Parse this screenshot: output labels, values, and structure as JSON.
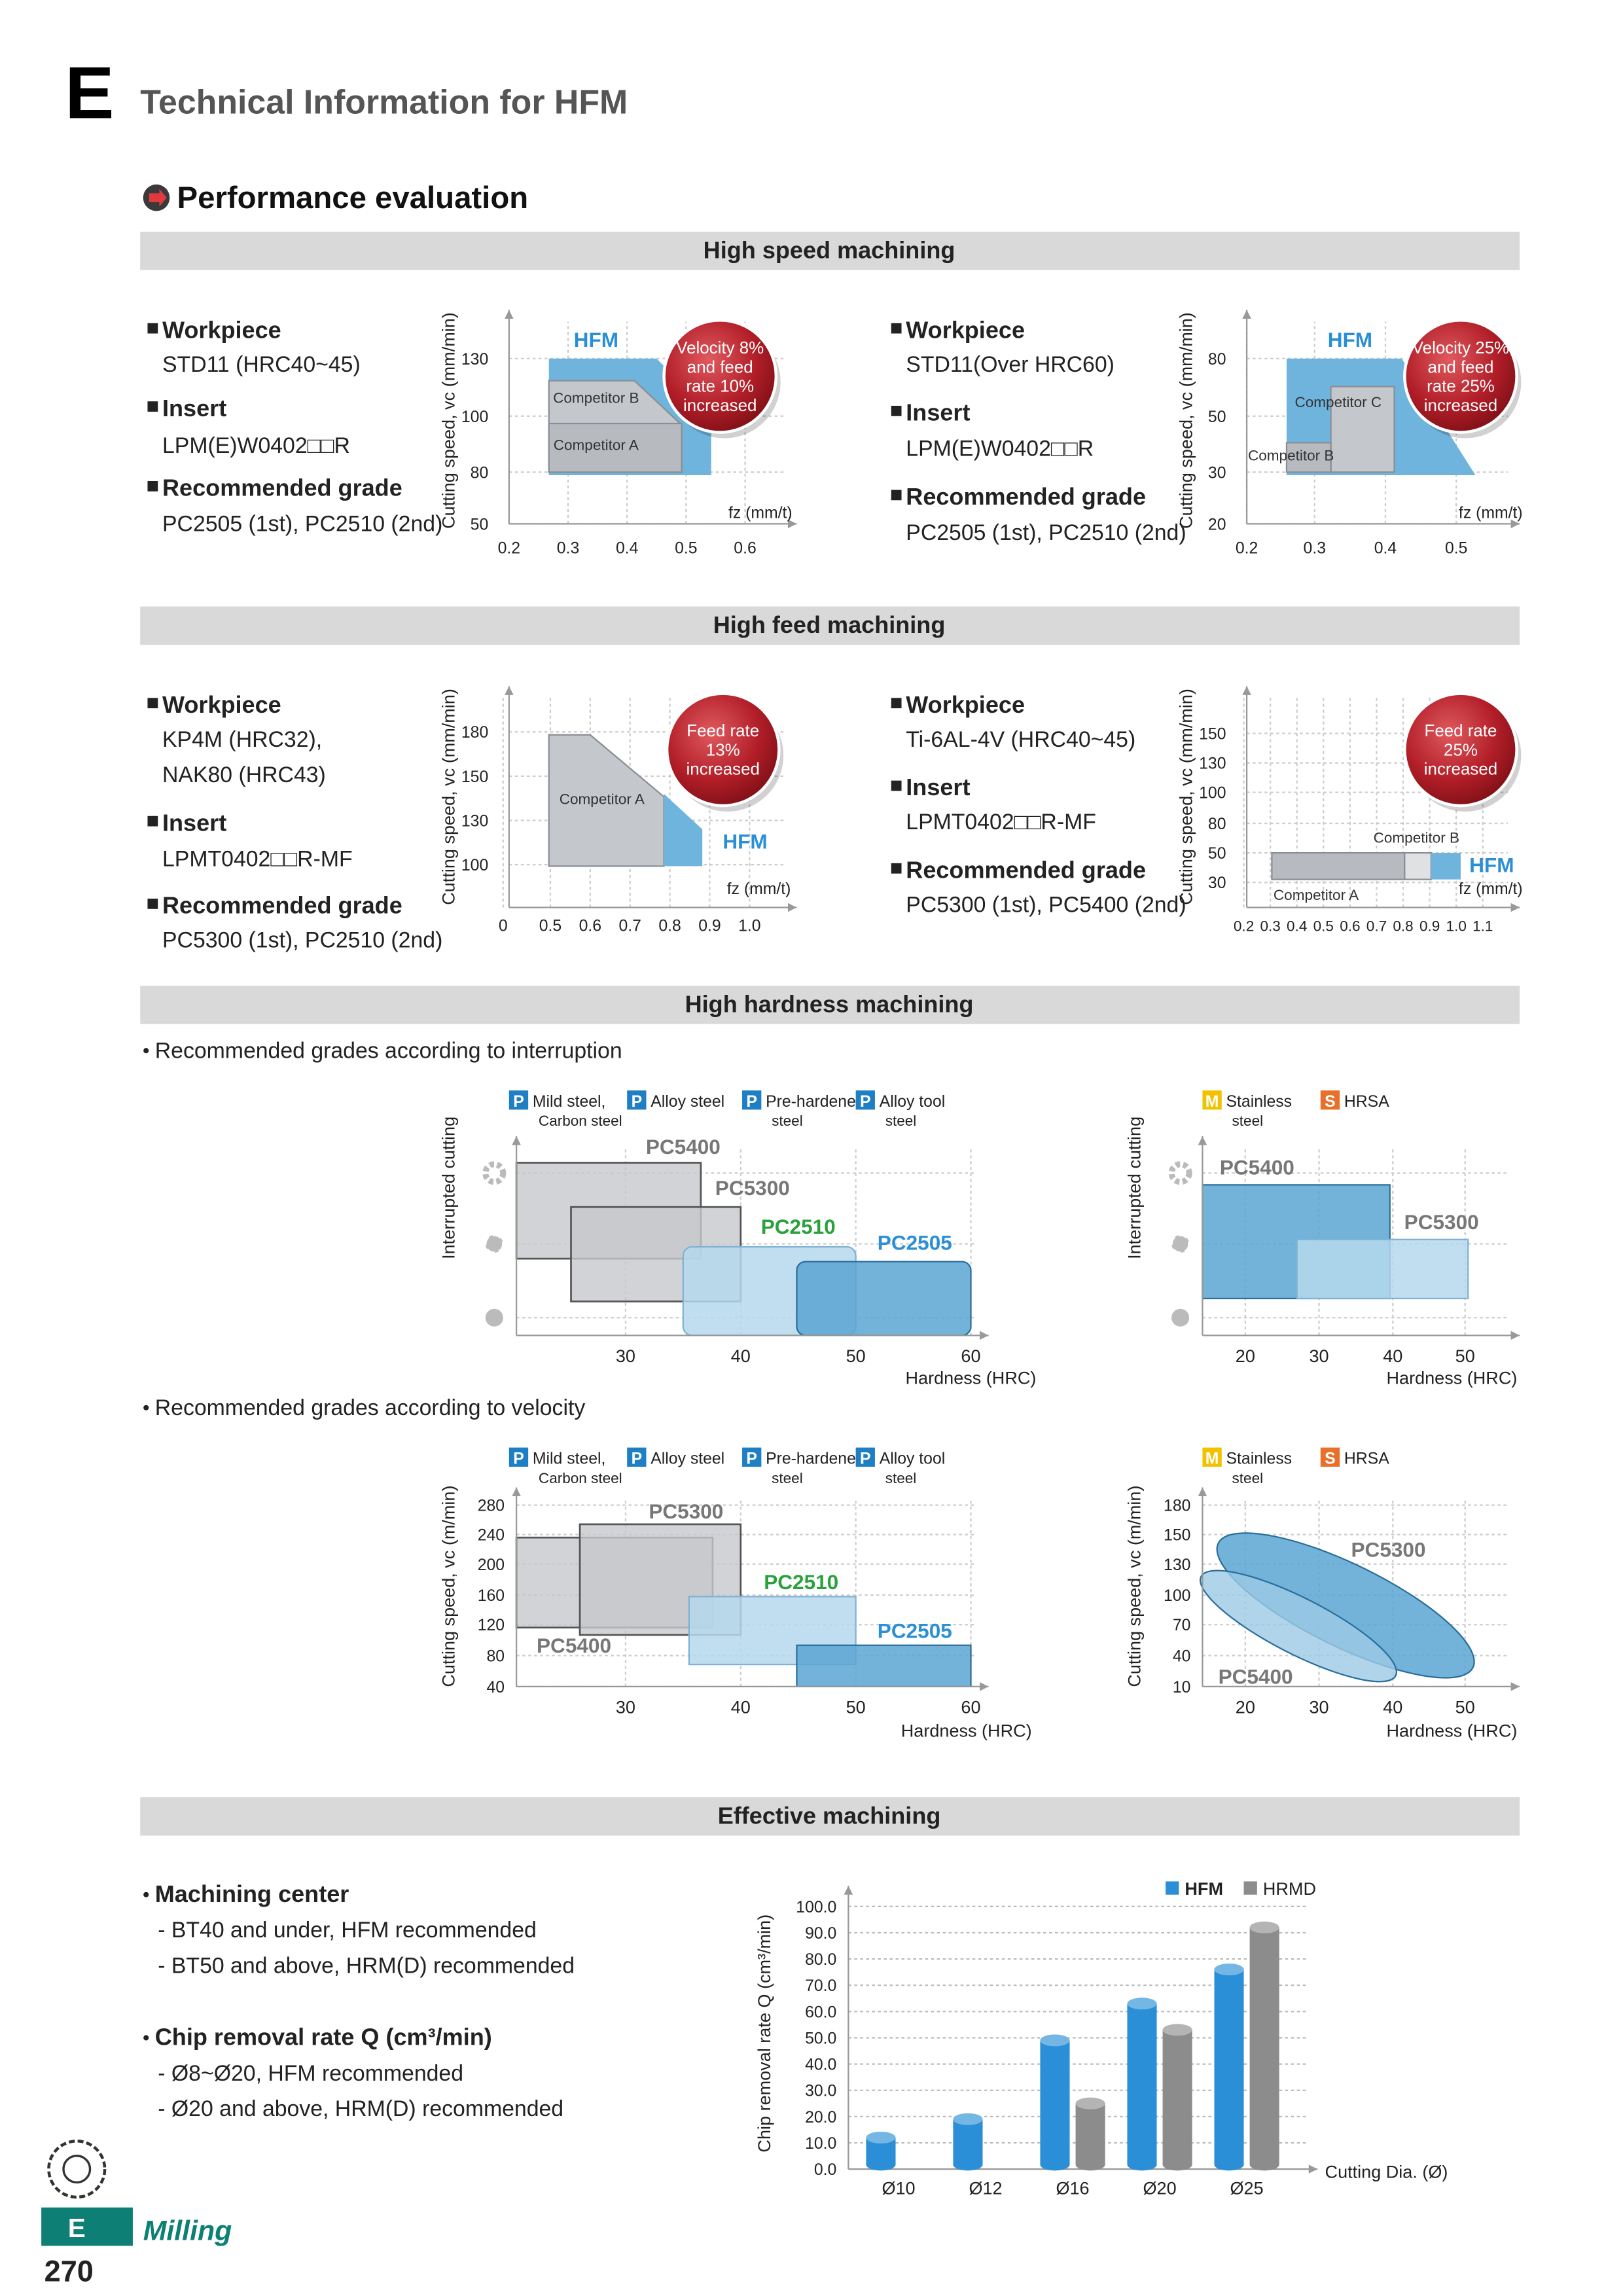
{
  "header": {
    "letter": "E",
    "title": "Technical Information for HFM"
  },
  "section": {
    "title": "Performance evaluation"
  },
  "high_speed": {
    "heading": "High speed machining",
    "left": {
      "specs": [
        {
          "label": "Workpiece",
          "lines": [
            "STD11 (HRC40~45)"
          ]
        },
        {
          "label": "Insert",
          "lines": [
            "LPM(E)W0402□□R"
          ]
        },
        {
          "label": "Recommended grade",
          "lines": [
            "PC2505 (1st), PC2510 (2nd)"
          ]
        }
      ],
      "chart": {
        "y_label": "Cutting speed, vc (mm/min)",
        "yticks": [
          130,
          100,
          80,
          50
        ],
        "xticks": [
          0.2,
          0.3,
          0.4,
          0.5,
          0.6
        ],
        "x_label": "fz (mm/t)",
        "labels": [
          "HFM",
          "Competitor B",
          "Competitor A"
        ],
        "badge": [
          "Velocity 8%",
          "and feed",
          "rate 10%",
          "increased"
        ]
      }
    },
    "right": {
      "specs": [
        {
          "label": "Workpiece",
          "lines": [
            "STD11(Over HRC60)"
          ]
        },
        {
          "label": "Insert",
          "lines": [
            "LPM(E)W0402□□R"
          ]
        },
        {
          "label": "Recommended grade",
          "lines": [
            "PC2505 (1st), PC2510 (2nd)"
          ]
        }
      ],
      "chart": {
        "y_label": "Cutting speed, vc (mm/min)",
        "yticks": [
          80,
          50,
          30,
          20
        ],
        "xticks": [
          0.2,
          0.3,
          0.4,
          0.5
        ],
        "x_label": "fz (mm/t)",
        "labels": [
          "HFM",
          "Competitor C",
          "Competitor B"
        ],
        "badge": [
          "Velocity 25%",
          "and feed",
          "rate 25%",
          "increased"
        ]
      }
    }
  },
  "high_feed": {
    "heading": "High feed machining",
    "left": {
      "specs": [
        {
          "label": "Workpiece",
          "lines": [
            "KP4M (HRC32),",
            "NAK80 (HRC43)"
          ]
        },
        {
          "label": "Insert",
          "lines": [
            "LPMT0402□□R-MF"
          ]
        },
        {
          "label": "Recommended grade",
          "lines": [
            "PC5300 (1st), PC2510 (2nd)"
          ]
        }
      ],
      "chart": {
        "y_label": "Cutting speed, vc (mm/min)",
        "yticks": [
          180,
          150,
          130,
          100
        ],
        "xticks": [
          0,
          0.5,
          0.6,
          0.7,
          0.8,
          0.9,
          {
            "value": 1,
            "label": "1.0"
          }
        ],
        "x_label": "fz (mm/t)",
        "labels": [
          "Competitor A",
          "HFM"
        ],
        "badge": [
          "Feed rate",
          "13%",
          "increased"
        ]
      }
    },
    "right": {
      "specs": [
        {
          "label": "Workpiece",
          "lines": [
            "Ti-6AL-4V (HRC40~45)"
          ]
        },
        {
          "label": "Insert",
          "lines": [
            "LPMT0402□□R-MF"
          ]
        },
        {
          "label": "Recommended grade",
          "lines": [
            "PC5300 (1st), PC5400 (2nd)"
          ]
        }
      ],
      "chart": {
        "y_label": "Cutting speed, vc (mm/min)",
        "yticks": [
          150,
          130,
          100,
          80,
          50,
          30
        ],
        "xticks": [
          0.2,
          0.3,
          0.4,
          0.5,
          0.6,
          0.7,
          0.8,
          0.9,
          {
            "value": 1,
            "label": "1.0"
          },
          1.1
        ],
        "x_label": "fz (mm/t)",
        "labels": [
          "Competitor B",
          "HFM",
          "Competitor A"
        ],
        "badge": [
          "Feed rate",
          "25%",
          "increased"
        ]
      }
    }
  },
  "high_hardness": {
    "heading": "High hardness machining",
    "interruption": {
      "note": "Recommended grades according to interruption",
      "p_chart": {
        "legend": [
          {
            "code": "P",
            "color": "#1f7fc4",
            "text": [
              "Mild steel,",
              "Carbon steel"
            ]
          },
          {
            "code": "P",
            "color": "#1f7fc4",
            "text": [
              "Alloy steel"
            ]
          },
          {
            "code": "P",
            "color": "#1f7fc4",
            "text": [
              "Pre-hardened",
              "steel"
            ]
          },
          {
            "code": "P",
            "color": "#1f7fc4",
            "text": [
              "Alloy tool",
              "steel"
            ]
          }
        ],
        "y_label": "Interrupted cutting",
        "xticks": [
          30,
          40,
          50,
          60
        ],
        "x_label": "Hardness (HRC)",
        "grades": [
          "PC5400",
          "PC5300",
          "PC2510",
          "PC2505"
        ]
      },
      "ms_chart": {
        "legend": [
          {
            "code": "M",
            "color": "#f2c200",
            "text": [
              "Stainless",
              "steel"
            ]
          },
          {
            "code": "S",
            "color": "#e8702a",
            "text": [
              "HRSA"
            ]
          }
        ],
        "y_label": "Interrupted cutting",
        "xticks": [
          20,
          30,
          40,
          50
        ],
        "x_label": "Hardness (HRC)",
        "grades": [
          "PC5400",
          "PC5300"
        ]
      }
    },
    "velocity": {
      "note": "Recommended grades according to velocity",
      "p_chart": {
        "legend": [
          {
            "code": "P",
            "color": "#1f7fc4",
            "text": [
              "Mild steel,",
              "Carbon steel"
            ]
          },
          {
            "code": "P",
            "color": "#1f7fc4",
            "text": [
              "Alloy steel"
            ]
          },
          {
            "code": "P",
            "color": "#1f7fc4",
            "text": [
              "Pre-hardened",
              "steel"
            ]
          },
          {
            "code": "P",
            "color": "#1f7fc4",
            "text": [
              "Alloy tool",
              "steel"
            ]
          }
        ],
        "y_label": "Cutting speed, vc (m/min)",
        "yticks": [
          280,
          240,
          200,
          160,
          120,
          80,
          40
        ],
        "xticks": [
          30,
          40,
          50,
          60
        ],
        "x_label": "Hardness (HRC)",
        "grades": [
          "PC5300",
          "PC2510",
          "PC2505",
          "PC5400"
        ]
      },
      "ms_chart": {
        "legend": [
          {
            "code": "M",
            "color": "#f2c200",
            "text": [
              "Stainless",
              "steel"
            ]
          },
          {
            "code": "S",
            "color": "#e8702a",
            "text": [
              "HRSA"
            ]
          }
        ],
        "y_label": "Cutting speed, vc (m/min)",
        "yticks": [
          180,
          150,
          130,
          100,
          70,
          40,
          10
        ],
        "xticks": [
          20,
          30,
          40,
          50
        ],
        "x_label": "Hardness (HRC)",
        "grades": [
          "PC5300",
          "PC5400"
        ]
      }
    }
  },
  "effective": {
    "heading": "Effective machining",
    "notes": [
      {
        "title": "Machining center",
        "items": [
          "- BT40 and under, HFM recommended",
          "- BT50 and above, HRM(D) recommended"
        ]
      },
      {
        "title": "Chip removal rate Q (cm³/min)",
        "items": [
          "- Ø8~Ø20, HFM recommended",
          "- Ø20 and above, HRM(D) recommended"
        ]
      }
    ]
  },
  "chart_data": {
    "type": "bar",
    "y_label": "Chip removal rate Q (cm³/min)",
    "x_label": "Cutting Dia. (Ø)",
    "categories": [
      "Ø10",
      "Ø12",
      "Ø16",
      "Ø20",
      "Ø25"
    ],
    "series": [
      {
        "name": "HFM",
        "color": "#2a8fd6",
        "values": [
          12,
          19,
          49,
          63,
          76
        ]
      },
      {
        "name": "HRMD",
        "color": "#8c8c8c",
        "values": [
          null,
          null,
          25,
          53,
          92
        ]
      }
    ],
    "ylim": [
      0,
      100
    ],
    "yticks": [
      {
        "value": 0,
        "label": "0.0"
      },
      {
        "value": 10,
        "label": "10.0"
      },
      {
        "value": 20,
        "label": "20.0"
      },
      {
        "value": 30,
        "label": "30.0"
      },
      {
        "value": 40,
        "label": "40.0"
      },
      {
        "value": 50,
        "label": "50.0"
      },
      {
        "value": 60,
        "label": "60.0"
      },
      {
        "value": 70,
        "label": "70.0"
      },
      {
        "value": 80,
        "label": "80.0"
      },
      {
        "value": 90,
        "label": "90.0"
      },
      {
        "value": 100,
        "label": "100.0"
      }
    ],
    "grid": true
  },
  "footer": {
    "section": "E",
    "label": "Milling",
    "page": 270
  }
}
